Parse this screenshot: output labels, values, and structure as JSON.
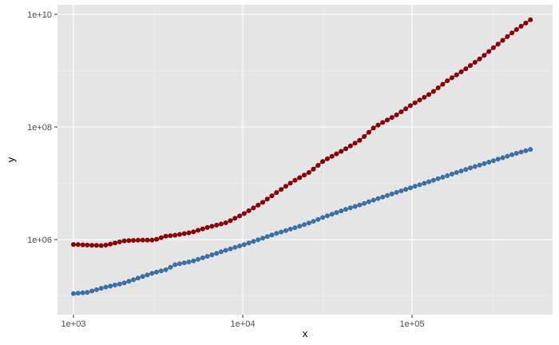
{
  "chart_data": {
    "type": "scatter",
    "title": "",
    "xlabel": "x",
    "ylabel": "y",
    "x_scale": "log",
    "y_scale": "log",
    "xlim": [
      1000,
      500000
    ],
    "ylim": [
      100000,
      10000000000
    ],
    "x_ticks": [
      1000,
      10000,
      100000
    ],
    "x_tick_labels": [
      "1e+03",
      "1e+04",
      "1e+05"
    ],
    "y_ticks": [
      1000000,
      100000000,
      10000000000
    ],
    "y_tick_labels": [
      "1e+06",
      "1e+08",
      "1e+10"
    ],
    "grid": true,
    "legend": "none",
    "panel_color": "#e5e5e5",
    "series": [
      {
        "color": "#8b0000",
        "connected": true,
        "points": [
          [
            1000,
            820000
          ],
          [
            1200,
            800000
          ],
          [
            1500,
            780000
          ],
          [
            2000,
            950000
          ],
          [
            2500,
            980000
          ],
          [
            3000,
            980000
          ],
          [
            3500,
            1150000
          ],
          [
            4000,
            1200000
          ],
          [
            5000,
            1350000
          ],
          [
            6000,
            1600000
          ],
          [
            8000,
            2000000
          ],
          [
            10000,
            2800000
          ],
          [
            13000,
            4500000
          ],
          [
            16000,
            7000000
          ],
          [
            20000,
            11000000
          ],
          [
            25000,
            16000000
          ],
          [
            30000,
            25000000
          ],
          [
            40000,
            40000000
          ],
          [
            50000,
            60000000
          ],
          [
            60000,
            100000000
          ],
          [
            80000,
            160000000
          ],
          [
            100000,
            250000000
          ],
          [
            130000,
            400000000
          ],
          [
            160000,
            650000000
          ],
          [
            200000,
            1000000000
          ],
          [
            250000,
            1600000000
          ],
          [
            300000,
            2500000000
          ],
          [
            400000,
            5000000000
          ],
          [
            500000,
            8000000000
          ]
        ]
      },
      {
        "color": "#3a6fa8",
        "connected": true,
        "points": [
          [
            1000,
            110000
          ],
          [
            1200,
            115000
          ],
          [
            1500,
            140000
          ],
          [
            2000,
            170000
          ],
          [
            3000,
            260000
          ],
          [
            3500,
            290000
          ],
          [
            4000,
            360000
          ],
          [
            5000,
            410000
          ],
          [
            6000,
            490000
          ],
          [
            8000,
            650000
          ],
          [
            10000,
            800000
          ],
          [
            13000,
            1050000
          ],
          [
            16000,
            1300000
          ],
          [
            20000,
            1600000
          ],
          [
            25000,
            2000000
          ],
          [
            30000,
            2500000
          ],
          [
            40000,
            3400000
          ],
          [
            50000,
            4200000
          ],
          [
            60000,
            5100000
          ],
          [
            80000,
            6800000
          ],
          [
            100000,
            8500000
          ],
          [
            130000,
            11000000
          ],
          [
            160000,
            13500000
          ],
          [
            200000,
            17000000
          ],
          [
            250000,
            21000000
          ],
          [
            300000,
            25000000
          ],
          [
            400000,
            33000000
          ],
          [
            500000,
            40000000
          ]
        ]
      }
    ]
  }
}
